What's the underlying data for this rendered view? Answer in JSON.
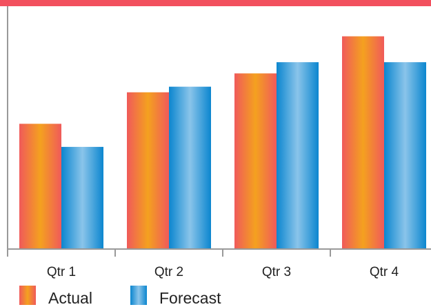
{
  "colors": {
    "top_band": "#f2505e",
    "axis": "#999999",
    "actual_gradient": [
      "#f05a5a",
      "#f4a11f",
      "#f05a5a"
    ],
    "forecast_gradient": [
      "#0b86cf",
      "#8ac4ea",
      "#0b86cf"
    ]
  },
  "chart_data": {
    "type": "bar",
    "categories": [
      "Qtr 1",
      "Qtr 2",
      "Qtr 3",
      "Qtr 4"
    ],
    "series": [
      {
        "name": "Actual",
        "values": [
          178,
          223,
          250,
          303
        ]
      },
      {
        "name": "Forecast",
        "values": [
          145,
          231,
          266,
          266
        ]
      }
    ],
    "ylim": [
      0,
      346
    ],
    "title": "",
    "xlabel": "",
    "ylabel": "",
    "grid": false,
    "legend_position": "bottom-left"
  }
}
